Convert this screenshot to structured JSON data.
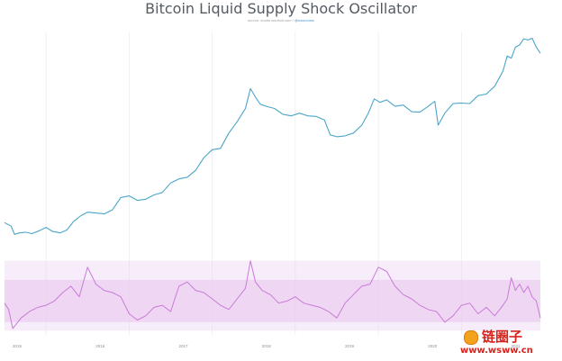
{
  "title": "Bitcoin Liquid Supply Shock Oscillator",
  "source": {
    "prefix": "source: charts.woobull.com / ",
    "link": "@woonomic"
  },
  "watermark": {
    "chinese_text": "链圈子",
    "url_text": "www.wsww.cn"
  },
  "colors": {
    "price_line": "#4aa6c8",
    "oscillator_line": "#c97ad8",
    "band_fill": "#e9c9ef",
    "grid": "#e6e8eb"
  },
  "chart_data": [
    {
      "type": "line",
      "title": "Bitcoin Liquid Supply Shock Oscillator",
      "x_ticks": [
        "2015",
        "2016",
        "2017",
        "2018",
        "2019",
        "2020",
        "2021"
      ],
      "x_range": [
        2015.0,
        2021.45
      ],
      "scale": "log",
      "series": [
        {
          "x": [
            2015.0,
            2015.08,
            2015.12,
            2015.18,
            2015.25,
            2015.33,
            2015.42,
            2015.5,
            2015.58,
            2015.67,
            2015.75,
            2015.83,
            2015.92,
            2016.0,
            2016.1,
            2016.2,
            2016.3,
            2016.4,
            2016.5,
            2016.6,
            2016.7,
            2016.8,
            2016.9,
            2017.0,
            2017.1,
            2017.2,
            2017.3,
            2017.4,
            2017.5,
            2017.6,
            2017.7,
            2017.8,
            2017.9,
            2017.96,
            2018.02,
            2018.08,
            2018.15,
            2018.25,
            2018.35,
            2018.45,
            2018.55,
            2018.65,
            2018.75,
            2018.85,
            2018.92,
            2019.0,
            2019.1,
            2019.2,
            2019.3,
            2019.38,
            2019.45,
            2019.52,
            2019.6,
            2019.7,
            2019.8,
            2019.9,
            2020.0,
            2020.1,
            2020.18,
            2020.22,
            2020.3,
            2020.4,
            2020.5,
            2020.6,
            2020.7,
            2020.8,
            2020.9,
            2021.0,
            2021.05,
            2021.1,
            2021.15,
            2021.2,
            2021.25,
            2021.3,
            2021.35,
            2021.4,
            2021.45
          ],
          "y": [
            320,
            290,
            230,
            240,
            245,
            235,
            255,
            280,
            250,
            240,
            260,
            330,
            390,
            430,
            420,
            410,
            460,
            650,
            680,
            600,
            620,
            700,
            750,
            980,
            1100,
            1150,
            1400,
            2000,
            2500,
            2600,
            4000,
            5500,
            8000,
            14000,
            11000,
            9000,
            8500,
            8000,
            6800,
            6500,
            7000,
            6500,
            6400,
            5800,
            3800,
            3600,
            3700,
            4000,
            5000,
            7000,
            10500,
            9500,
            10200,
            8500,
            8800,
            7300,
            7200,
            8500,
            9800,
            5000,
            7000,
            9200,
            9300,
            9200,
            11500,
            12000,
            15000,
            23000,
            35000,
            33000,
            45000,
            48000,
            57000,
            55000,
            58000,
            45000,
            38000
          ]
        },
        {
          "x": [
            2015.0,
            2015.05,
            2015.1,
            2015.2,
            2015.3,
            2015.4,
            2015.5,
            2015.6,
            2015.7,
            2015.8,
            2015.9,
            2016.0,
            2016.1,
            2016.2,
            2016.3,
            2016.4,
            2016.5,
            2016.6,
            2016.7,
            2016.8,
            2016.9,
            2017.0,
            2017.1,
            2017.2,
            2017.3,
            2017.4,
            2017.5,
            2017.6,
            2017.7,
            2017.8,
            2017.9,
            2017.96,
            2018.02,
            2018.1,
            2018.2,
            2018.3,
            2018.4,
            2018.5,
            2018.6,
            2018.7,
            2018.8,
            2018.9,
            2019.0,
            2019.1,
            2019.2,
            2019.3,
            2019.4,
            2019.5,
            2019.6,
            2019.7,
            2019.8,
            2019.9,
            2020.0,
            2020.1,
            2020.2,
            2020.3,
            2020.4,
            2020.5,
            2020.6,
            2020.7,
            2020.8,
            2020.9,
            2021.0,
            2021.05,
            2021.1,
            2021.15,
            2021.2,
            2021.25,
            2021.3,
            2021.35,
            2021.4,
            2021.45
          ],
          "y": [
            0.4,
            0.1,
            -0.8,
            -0.3,
            0.0,
            0.2,
            0.3,
            0.5,
            0.9,
            1.2,
            0.7,
            2.1,
            1.3,
            1.0,
            0.9,
            0.7,
            -0.1,
            -0.4,
            -0.2,
            0.2,
            0.3,
            0.0,
            1.2,
            1.4,
            1.0,
            0.9,
            0.6,
            0.3,
            0.1,
            0.6,
            1.1,
            2.4,
            1.4,
            1.0,
            0.8,
            0.4,
            0.5,
            0.7,
            0.4,
            0.3,
            0.2,
            0.0,
            -0.3,
            0.4,
            0.8,
            1.2,
            1.3,
            2.1,
            1.9,
            1.2,
            0.8,
            0.6,
            0.3,
            0.1,
            0.0,
            -0.5,
            -0.2,
            0.3,
            0.4,
            -0.1,
            0.2,
            -0.2,
            0.3,
            0.6,
            1.6,
            1.0,
            1.3,
            0.9,
            1.2,
            0.7,
            0.5,
            -0.3
          ]
        }
      ],
      "band": [
        -0.5,
        1.5
      ],
      "grid": true,
      "legend": "none"
    }
  ]
}
